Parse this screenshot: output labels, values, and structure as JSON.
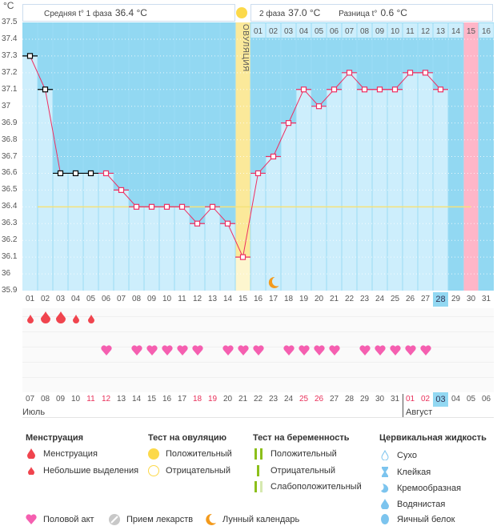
{
  "unit_label": "°C",
  "header": {
    "phase1_label": "Средняя t° 1 фаза",
    "phase1_value": "36.4 °C",
    "phase2_label": "2 фаза",
    "phase2_value": "37.0 °C",
    "diff_label": "Разница t°",
    "diff_value": "0.6 °C",
    "ovulation_label": "ОВУЛЯЦИЯ"
  },
  "colors": {
    "bg_dark": "#92d8f2",
    "bar": "#cdeefc",
    "ovulation": "#fbe99a",
    "pink": "#ffb6c8",
    "line": "#ee2f62",
    "coverline": "#f5e27a"
  },
  "chart_data": {
    "type": "line",
    "ylim": [
      35.9,
      37.5
    ],
    "y_ticks": [
      "37.5",
      "37.4",
      "37.3",
      "37.2",
      "37.1",
      "37",
      "36.9",
      "36.8",
      "36.7",
      "36.6",
      "36.5",
      "36.4",
      "36.3",
      "36.2",
      "36.1",
      "36",
      "35.9"
    ],
    "cycle_days": [
      "01",
      "02",
      "03",
      "04",
      "05",
      "06",
      "07",
      "08",
      "09",
      "10",
      "11",
      "12",
      "13",
      "14",
      "15",
      "16",
      "17",
      "18",
      "19",
      "20",
      "21",
      "22",
      "23",
      "24",
      "25",
      "26",
      "27",
      "28",
      "29",
      "30",
      "31"
    ],
    "temperatures": [
      37.3,
      37.1,
      36.6,
      36.6,
      36.6,
      36.6,
      36.5,
      36.4,
      36.4,
      36.4,
      36.4,
      36.3,
      36.4,
      36.3,
      36.1,
      36.6,
      36.7,
      36.9,
      37.1,
      37.0,
      37.1,
      37.2,
      37.1,
      37.1,
      37.1,
      37.2,
      37.2,
      37.1,
      null,
      null,
      null
    ],
    "excluded_days": [
      1,
      2,
      3,
      4,
      5
    ],
    "coverline": 36.4,
    "ovulation_day": 15,
    "phase2_days": [
      "01",
      "02",
      "03",
      "04",
      "05",
      "06",
      "07",
      "08",
      "09",
      "10",
      "11",
      "12",
      "13",
      "14",
      "15",
      "16"
    ],
    "highlight_day": 30,
    "current_day": 28,
    "moon_day": 17
  },
  "symbols": {
    "menstruation": [
      {
        "day": 1,
        "size": "small"
      },
      {
        "day": 2,
        "size": "big"
      },
      {
        "day": 3,
        "size": "big"
      },
      {
        "day": 4,
        "size": "small"
      },
      {
        "day": 5,
        "size": "small"
      }
    ],
    "intercourse_days": [
      6,
      8,
      9,
      10,
      11,
      12,
      14,
      15,
      16,
      18,
      19,
      20,
      21,
      23,
      24,
      25,
      26,
      27
    ]
  },
  "calendar": {
    "dates": [
      "07",
      "08",
      "09",
      "10",
      "11",
      "12",
      "13",
      "14",
      "15",
      "16",
      "17",
      "18",
      "19",
      "20",
      "21",
      "22",
      "23",
      "24",
      "25",
      "26",
      "27",
      "28",
      "29",
      "30",
      "31",
      "01",
      "02",
      "03",
      "04",
      "05",
      "06"
    ],
    "weekend_indices": [
      4,
      5,
      11,
      12,
      18,
      19,
      25,
      26
    ],
    "selected_index": 27,
    "month1": "Июль",
    "month2": "Август"
  },
  "legend": {
    "menstruation": {
      "title": "Менструация",
      "items": [
        "Менструация",
        "Небольшие выделения"
      ]
    },
    "ovulation_test": {
      "title": "Тест на овуляцию",
      "items": [
        "Положительный",
        "Отрицательный"
      ]
    },
    "pregnancy_test": {
      "title": "Тест на беременность",
      "items": [
        "Положительный",
        "Отрицательный",
        "Слабоположительный"
      ]
    },
    "cervical": {
      "title": "Цервикальная жидкость",
      "items": [
        "Сухо",
        "Клейкая",
        "Кремообразная",
        "Водянистая",
        "Яичный белок"
      ]
    },
    "bottom": [
      "Половой акт",
      "Прием лекарств",
      "Лунный календарь"
    ]
  }
}
